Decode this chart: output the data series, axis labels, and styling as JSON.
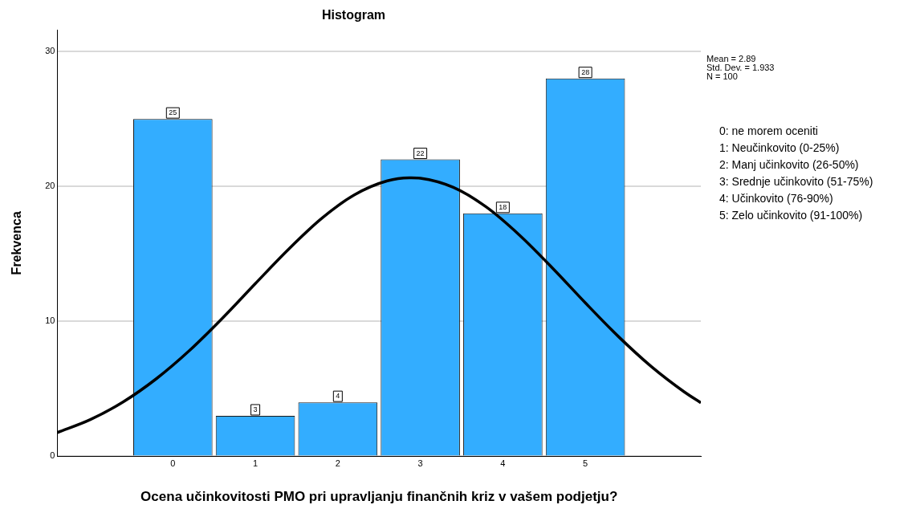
{
  "chart_data": {
    "type": "histogram",
    "title": "Histogram",
    "xlabel": "Ocena učinkovitosti PMO pri upravljanju finančnih kriz v vašem podjetju?",
    "ylabel": "Frekvenca",
    "xlim": [
      -1.4,
      6.4
    ],
    "xticks": [
      0,
      1,
      2,
      3,
      4,
      5
    ],
    "ylim": [
      0,
      31.6
    ],
    "yticks": [
      0,
      10,
      20,
      30
    ],
    "grid": "y",
    "legend": false,
    "series": [
      {
        "bins": [
          -0.5,
          0.5,
          1.5,
          2.5,
          3.5,
          4.5,
          5.5
        ],
        "values": [
          25,
          3,
          4,
          22,
          18,
          28
        ],
        "value_labels": [
          "25",
          "3",
          "4",
          "22",
          "18",
          "28"
        ],
        "color": "#33adff"
      },
      {
        "type": "line",
        "color": "#000000",
        "x": [
          -1.4,
          -1.0,
          -0.6,
          -0.2,
          0.2,
          0.6,
          1.0,
          1.4,
          1.8,
          2.2,
          2.6,
          2.89,
          3.0,
          3.4,
          3.8,
          4.2,
          4.6,
          5.0,
          5.4,
          5.8,
          6.2,
          6.4
        ],
        "values": [
          1.76,
          2.72,
          4.04,
          5.75,
          7.83,
          10.23,
          12.8,
          15.33,
          17.61,
          19.37,
          20.41,
          20.64,
          20.61,
          19.93,
          18.47,
          16.4,
          13.96,
          11.37,
          8.88,
          6.65,
          4.77,
          3.97
        ]
      }
    ],
    "annotations": [
      "Mean = 2.89",
      "Std. Dev. = 1.933",
      "N = 100",
      "0: ne morem oceniti",
      "1: Neučinkovito (0-25%)",
      "2: Manj učinkovito (26-50%)",
      "3: Srednje učinkovito (51-75%)",
      "4: Učinkovito (76-90%)",
      "5: Zelo učinkovito (91-100%)"
    ]
  }
}
